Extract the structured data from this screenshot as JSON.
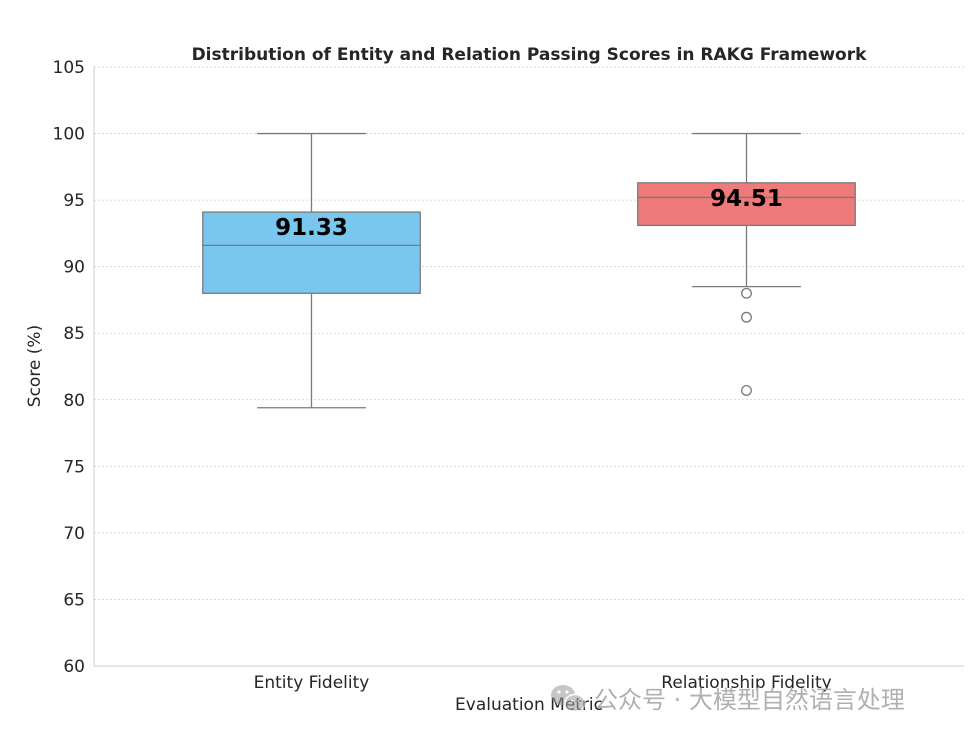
{
  "chart_data": {
    "type": "box",
    "title": "Distribution of Entity and Relation Passing Scores in RAKG Framework",
    "xlabel": "Evaluation Metric",
    "ylabel": "Score (%)",
    "ylim": [
      60,
      105
    ],
    "yticks": [
      60,
      65,
      70,
      75,
      80,
      85,
      90,
      95,
      100,
      105
    ],
    "grid": true,
    "categories": [
      "Entity Fidelity",
      "Relationship Fidelity"
    ],
    "series": [
      {
        "category": "Entity Fidelity",
        "whisker_low": 79.4,
        "q1": 88.0,
        "median": 91.6,
        "q3": 94.1,
        "whisker_high": 100,
        "outliers": [],
        "mean_label": "91.33",
        "color": "#79c7ee"
      },
      {
        "category": "Relationship Fidelity",
        "whisker_low": 88.5,
        "q1": 93.1,
        "median": 95.2,
        "q3": 96.3,
        "whisker_high": 100,
        "outliers": [
          88.0,
          86.2,
          80.7
        ],
        "mean_label": "94.51",
        "color": "#ee7a7a"
      }
    ]
  },
  "watermark": {
    "text": "公众号 · 大模型自然语言处理",
    "icon": "wechat-icon"
  }
}
